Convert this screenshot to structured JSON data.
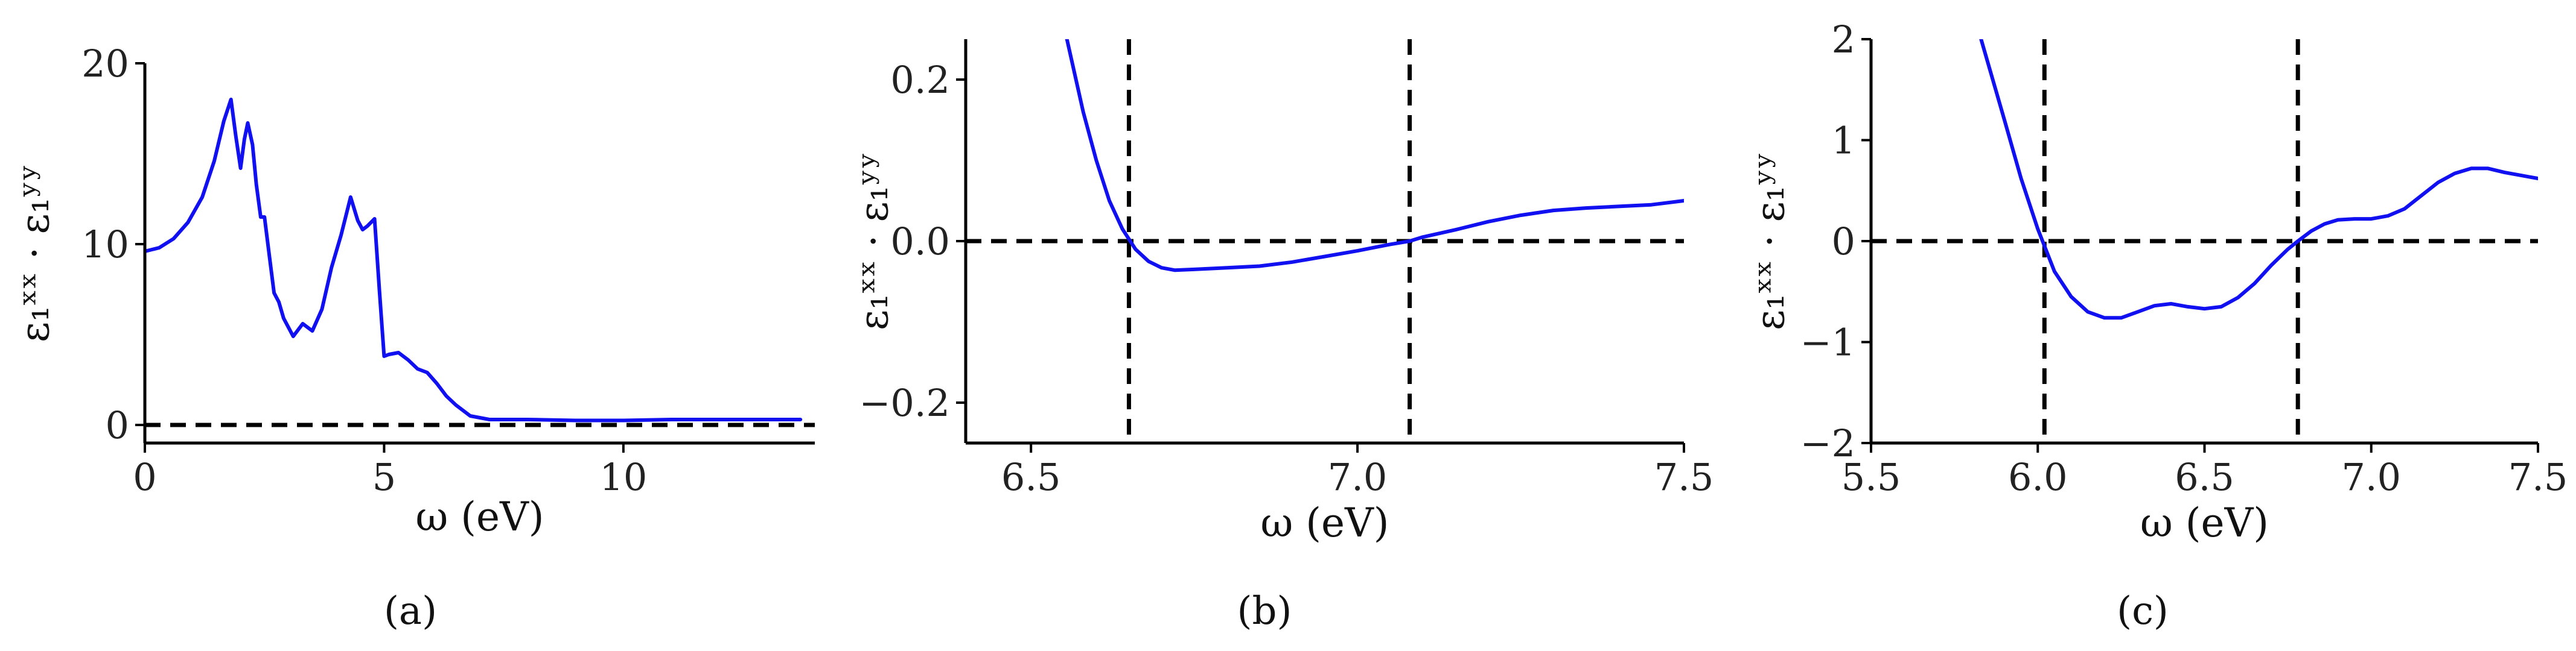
{
  "colors": {
    "curve": "#1010f0",
    "axis": "#000000",
    "reference": "#000000"
  },
  "chart_data": [
    {
      "type": "line",
      "panel_label": "(a)",
      "xlabel": "ω (eV)",
      "ylabel": "ε₁ˣˣ · ε₁ʸʸ",
      "xlim": [
        0,
        14
      ],
      "ylim": [
        -1,
        20
      ],
      "xticks": [
        0,
        5,
        10
      ],
      "yticks": [
        0,
        10,
        20
      ],
      "xtick_labels": [
        "0",
        "5",
        "10"
      ],
      "ytick_labels": [
        "0",
        "10",
        "20"
      ],
      "grid": false,
      "reference_lines": {
        "horizontal": [
          0
        ],
        "vertical": []
      },
      "series": [
        {
          "x": [
            0,
            0.3,
            0.6,
            0.9,
            1.2,
            1.45,
            1.65,
            1.8,
            1.9,
            2.0,
            2.08,
            2.15,
            2.25,
            2.33,
            2.42,
            2.5,
            2.6,
            2.7,
            2.8,
            2.9,
            3.1,
            3.3,
            3.5,
            3.7,
            3.9,
            4.1,
            4.3,
            4.45,
            4.55,
            4.65,
            4.8,
            4.9,
            5.0,
            5.1,
            5.3,
            5.5,
            5.7,
            5.9,
            6.1,
            6.3,
            6.5,
            6.8,
            7.2,
            8,
            9,
            10,
            11,
            12,
            13,
            13.7
          ],
          "y": [
            9.6,
            9.8,
            10.3,
            11.2,
            12.6,
            14.6,
            16.8,
            18.0,
            16.0,
            14.2,
            15.8,
            16.7,
            15.5,
            13.3,
            11.5,
            11.5,
            9.4,
            7.3,
            6.8,
            5.9,
            4.9,
            5.6,
            5.2,
            6.4,
            8.7,
            10.5,
            12.6,
            11.3,
            10.8,
            11.0,
            11.4,
            7.5,
            3.8,
            3.9,
            4.0,
            3.6,
            3.1,
            2.9,
            2.3,
            1.6,
            1.1,
            0.5,
            0.3,
            0.3,
            0.25,
            0.25,
            0.3,
            0.3,
            0.3,
            0.3
          ]
        }
      ]
    },
    {
      "type": "line",
      "panel_label": "(b)",
      "xlabel": "ω (eV)",
      "ylabel": "ε₁ˣˣ · ε₁ʸʸ",
      "xlim": [
        6.4,
        7.5
      ],
      "ylim": [
        -0.25,
        0.25
      ],
      "xticks": [
        6.5,
        7.0,
        7.5
      ],
      "yticks": [
        -0.2,
        0.0,
        0.2
      ],
      "xtick_labels": [
        "6.5",
        "7.0",
        "7.5"
      ],
      "ytick_labels": [
        "−0.2",
        "0.0",
        "0.2"
      ],
      "grid": false,
      "reference_lines": {
        "horizontal": [
          0.0
        ],
        "vertical": [
          6.65,
          7.08
        ]
      },
      "series": [
        {
          "x": [
            6.555,
            6.58,
            6.6,
            6.62,
            6.64,
            6.66,
            6.68,
            6.7,
            6.72,
            6.75,
            6.8,
            6.85,
            6.9,
            6.95,
            7.0,
            7.05,
            7.08,
            7.1,
            7.15,
            7.2,
            7.25,
            7.3,
            7.35,
            7.4,
            7.45,
            7.5
          ],
          "y": [
            0.25,
            0.16,
            0.1,
            0.05,
            0.015,
            -0.01,
            -0.025,
            -0.033,
            -0.036,
            -0.035,
            -0.033,
            -0.031,
            -0.026,
            -0.019,
            -0.012,
            -0.004,
            0.0,
            0.005,
            0.014,
            0.024,
            0.032,
            0.038,
            0.041,
            0.043,
            0.045,
            0.05
          ]
        }
      ]
    },
    {
      "type": "line",
      "panel_label": "(c)",
      "xlabel": "ω (eV)",
      "ylabel": "ε₁ˣˣ · ε₁ʸʸ",
      "xlim": [
        5.5,
        7.5
      ],
      "ylim": [
        -2,
        2
      ],
      "xticks": [
        5.5,
        6.0,
        6.5,
        7.0,
        7.5
      ],
      "yticks": [
        -2,
        -1,
        0,
        1,
        2
      ],
      "xtick_labels": [
        "5.5",
        "6.0",
        "6.5",
        "7.0",
        "7.5"
      ],
      "ytick_labels": [
        "−2",
        "−1",
        "0",
        "1",
        "2"
      ],
      "grid": false,
      "reference_lines": {
        "horizontal": [
          0
        ],
        "vertical": [
          6.02,
          6.78
        ]
      },
      "series": [
        {
          "x": [
            5.83,
            5.9,
            5.95,
            6.0,
            6.05,
            6.1,
            6.15,
            6.2,
            6.25,
            6.3,
            6.35,
            6.4,
            6.45,
            6.5,
            6.55,
            6.6,
            6.65,
            6.7,
            6.75,
            6.78,
            6.82,
            6.86,
            6.9,
            6.95,
            7.0,
            7.05,
            7.1,
            7.15,
            7.2,
            7.25,
            7.3,
            7.35,
            7.4,
            7.45,
            7.5
          ],
          "y": [
            2.0,
            1.2,
            0.62,
            0.12,
            -0.3,
            -0.55,
            -0.7,
            -0.76,
            -0.76,
            -0.7,
            -0.64,
            -0.62,
            -0.65,
            -0.67,
            -0.65,
            -0.56,
            -0.42,
            -0.24,
            -0.08,
            0.0,
            0.1,
            0.17,
            0.21,
            0.22,
            0.22,
            0.25,
            0.32,
            0.45,
            0.58,
            0.67,
            0.72,
            0.72,
            0.68,
            0.65,
            0.62
          ]
        }
      ]
    }
  ]
}
